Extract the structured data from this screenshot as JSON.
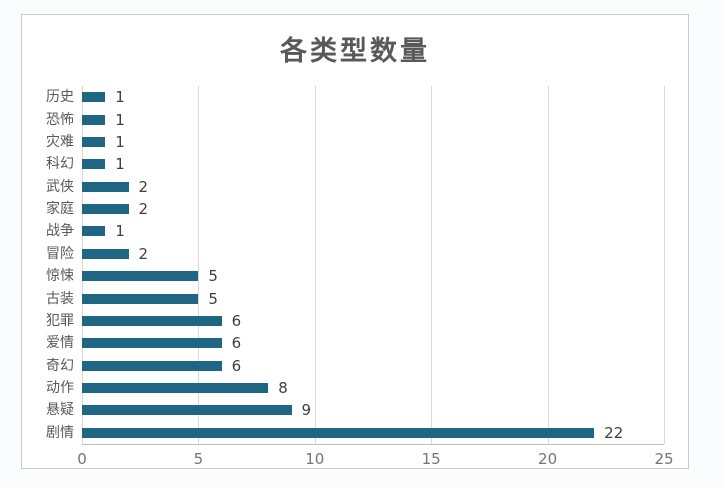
{
  "page": {
    "background_color": "#fbfcfd",
    "frame_background": "#ffffff",
    "frame_border_color": "#c9c9c9"
  },
  "chart_data": {
    "type": "bar",
    "orientation": "horizontal",
    "title": "各类型数量",
    "categories": [
      "历史",
      "恐怖",
      "灾难",
      "科幻",
      "武侠",
      "家庭",
      "战争",
      "冒险",
      "惊悚",
      "古装",
      "犯罪",
      "爱情",
      "奇幻",
      "动作",
      "悬疑",
      "剧情"
    ],
    "values": [
      1,
      1,
      1,
      1,
      2,
      2,
      1,
      2,
      5,
      5,
      6,
      6,
      6,
      8,
      9,
      22
    ],
    "category_order": "top-to-bottom",
    "data_labels_shown": true,
    "xlabel": "",
    "ylabel": "",
    "xlim": [
      0,
      25
    ],
    "x_ticks": [
      0,
      5,
      10,
      15,
      20,
      25
    ],
    "grid": "vertical-gridlines-only",
    "legend_position": "none",
    "bar_color": "#1f6684",
    "title_color": "#595959",
    "category_label_color": "#595959",
    "value_label_color": "#404040",
    "tick_label_color": "#757575",
    "gridline_color": "#d9d9d9",
    "axis_line_color": "#bfbfbf"
  }
}
